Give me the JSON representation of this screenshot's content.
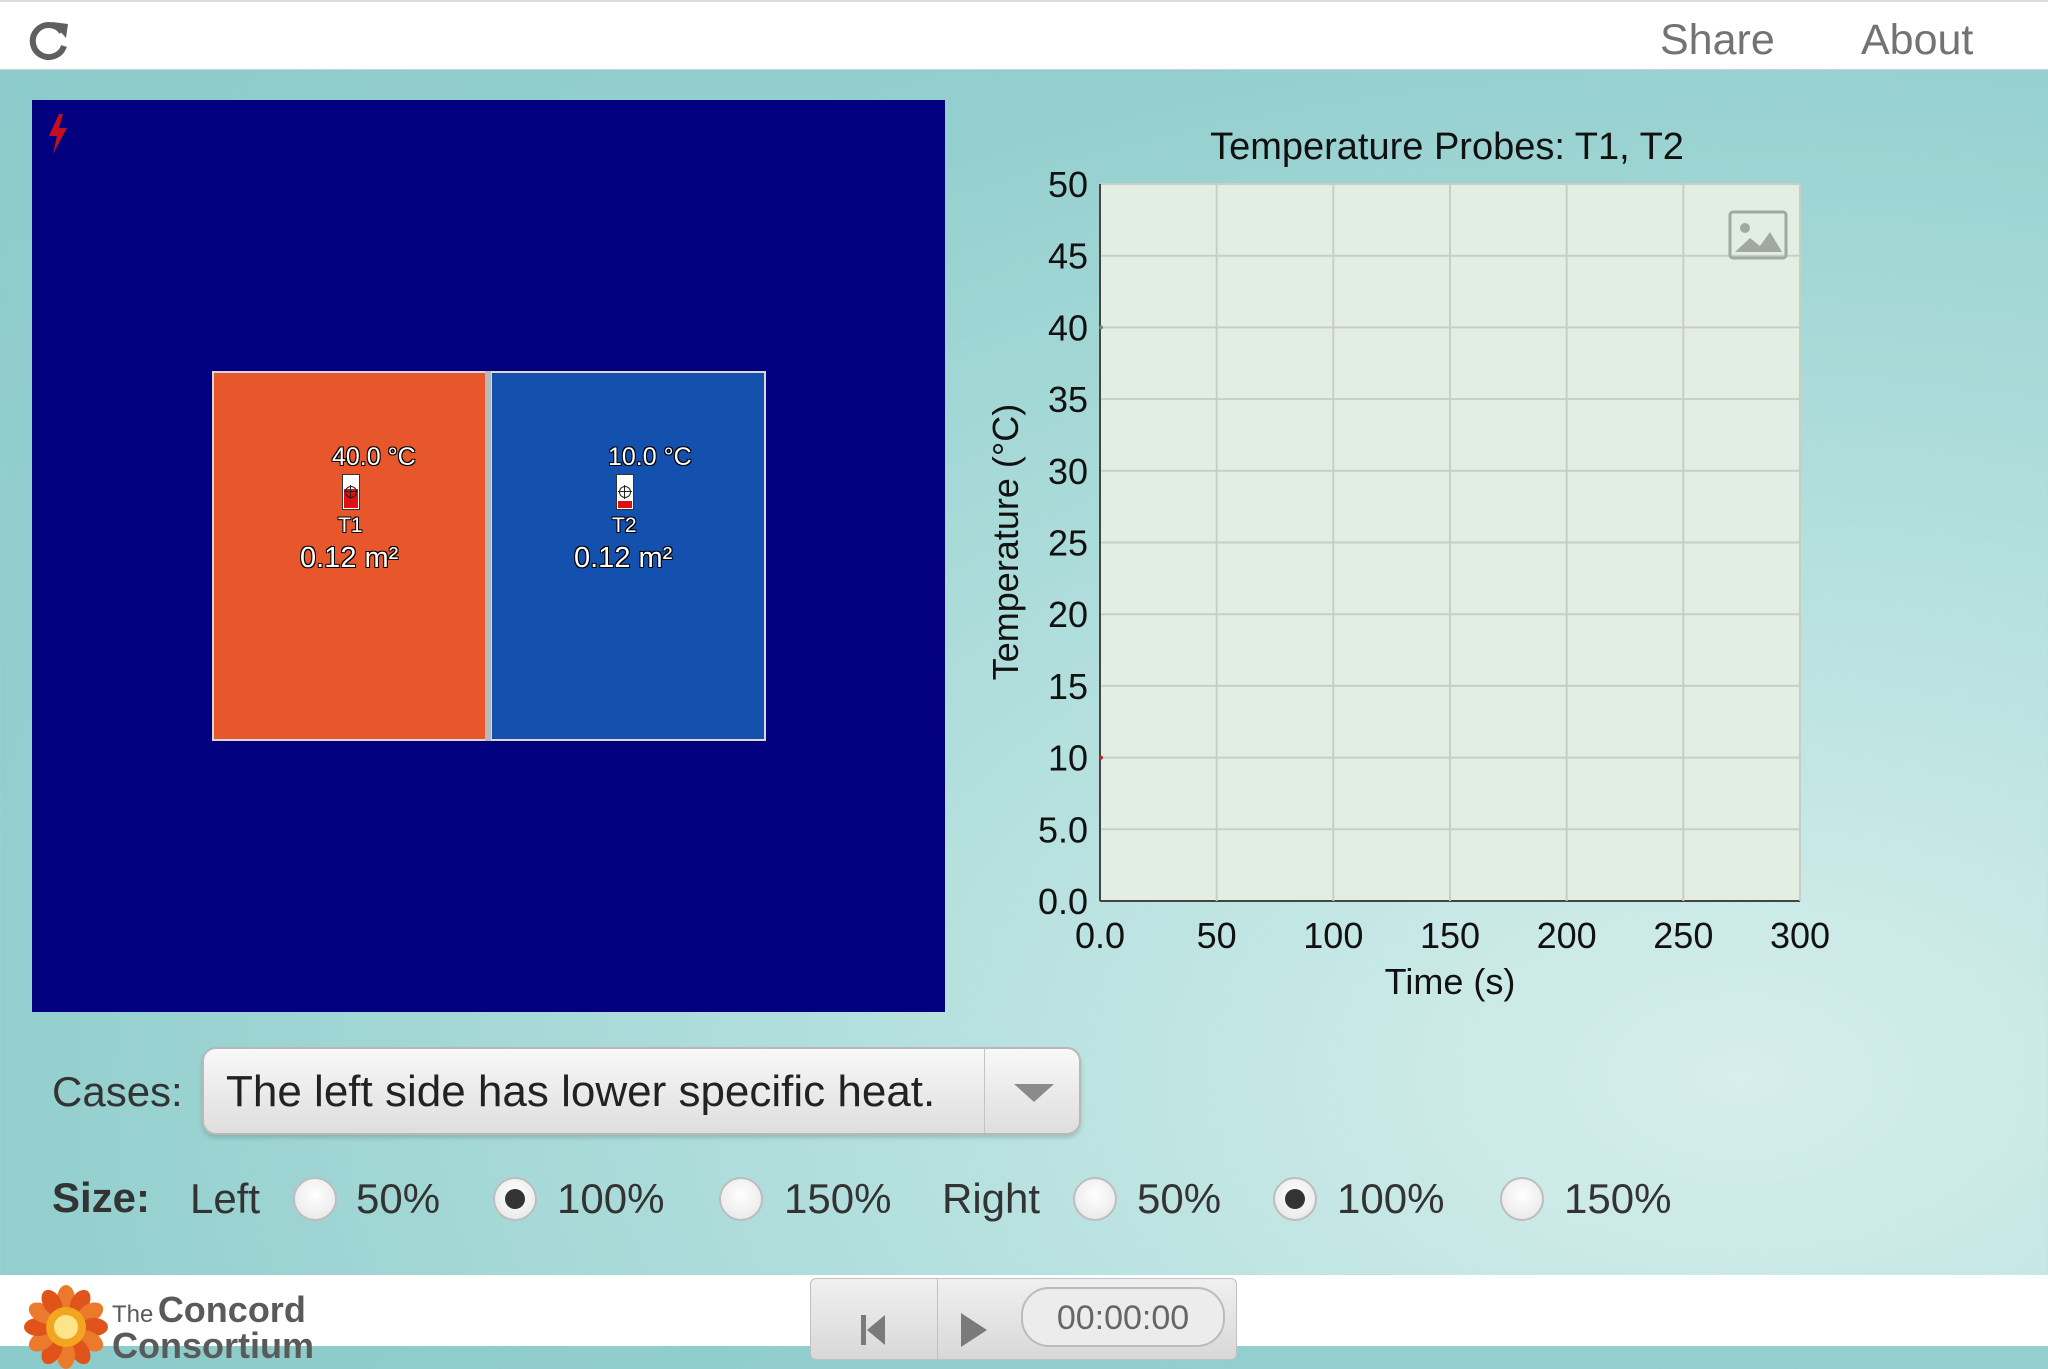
{
  "header": {
    "share_label": "Share",
    "about_label": "About"
  },
  "simulation": {
    "left_block": {
      "temperature": "40.0 °C",
      "probe": "T1",
      "area": "0.12 m²",
      "color": "#e8572b",
      "fill_fraction": 0.55
    },
    "right_block": {
      "temperature": "10.0 °C",
      "probe": "T2",
      "area": "0.12 m²",
      "color": "#1450ad",
      "fill_fraction": 0.22
    },
    "background_color": "#02007f"
  },
  "chart_data": {
    "type": "line",
    "title": "Temperature Probes: T1, T2",
    "xlabel": "Time (s)",
    "ylabel": "Temperature (°C)",
    "xlim": [
      0,
      300
    ],
    "ylim": [
      0,
      50
    ],
    "xticks": [
      "0.0",
      "50",
      "100",
      "150",
      "200",
      "250",
      "300"
    ],
    "yticks": [
      "0.0",
      "5.0",
      "10",
      "15",
      "20",
      "25",
      "30",
      "35",
      "40",
      "45",
      "50"
    ],
    "grid": true,
    "series": [
      {
        "x": [
          0
        ],
        "y": [
          40
        ]
      },
      {
        "x": [
          0
        ],
        "y": [
          10
        ]
      }
    ]
  },
  "controls": {
    "cases_label": "Cases:",
    "cases_value": "The left side has lower specific heat.",
    "size_label": "Size:",
    "left_label": "Left",
    "right_label": "Right",
    "left_options": [
      {
        "label": "50%",
        "checked": false
      },
      {
        "label": "100%",
        "checked": true
      },
      {
        "label": "150%",
        "checked": false
      }
    ],
    "right_options": [
      {
        "label": "50%",
        "checked": false
      },
      {
        "label": "100%",
        "checked": true
      },
      {
        "label": "150%",
        "checked": false
      }
    ]
  },
  "footer": {
    "logo_the": "The",
    "logo_name_1": "Concord",
    "logo_name_2": "Consortium",
    "clock": "00:00:00"
  }
}
